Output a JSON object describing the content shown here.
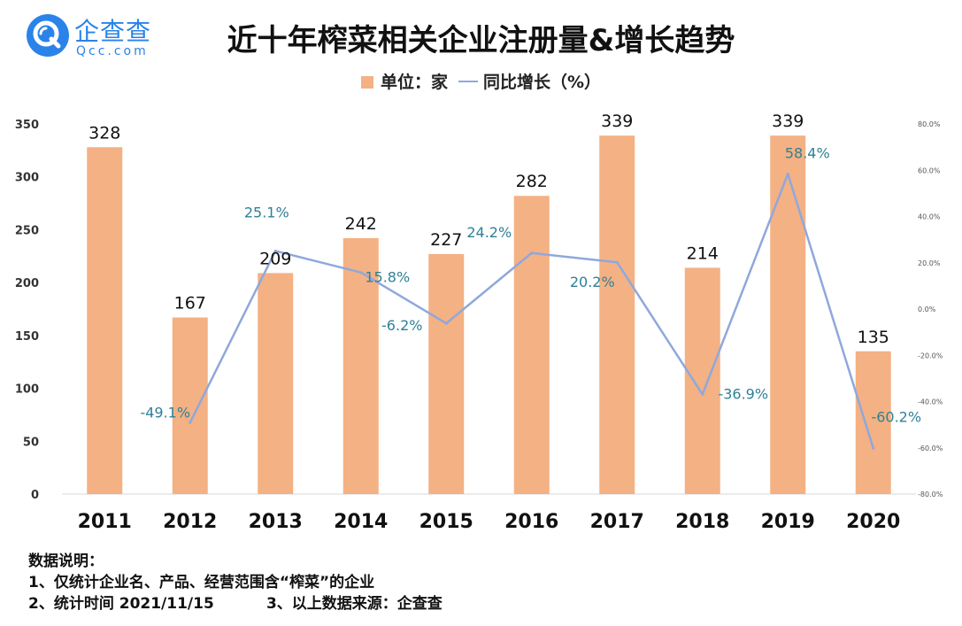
{
  "brand": {
    "name": "企查查",
    "domain": "Qcc.com",
    "color": "#2a83e8",
    "icon": "qcc-logo-icon"
  },
  "chart_data": {
    "type": "bar",
    "title": "近十年榨菜相关企业注册量&增长趋势",
    "categories": [
      "2011",
      "2012",
      "2013",
      "2014",
      "2015",
      "2016",
      "2017",
      "2018",
      "2019",
      "2020"
    ],
    "series": [
      {
        "name": "单位：家",
        "kind": "bar",
        "color": "#f4b184",
        "values": [
          328,
          167,
          209,
          242,
          227,
          282,
          339,
          214,
          339,
          135
        ],
        "labels": [
          "328",
          "167",
          "209",
          "242",
          "227",
          "282",
          "339",
          "214",
          "339",
          "135"
        ]
      },
      {
        "name": "同比增长（%）",
        "kind": "line",
        "color": "#8fa8dc",
        "label_color": "#2e8196",
        "values": [
          null,
          -49.1,
          25.1,
          15.8,
          -6.2,
          24.2,
          20.2,
          -36.9,
          58.4,
          -60.2
        ],
        "labels": [
          "",
          "-49.1%",
          "25.1%",
          "15.8%",
          "-6.2%",
          "24.2%",
          "20.2%",
          "-36.9%",
          "58.4%",
          "-60.2%"
        ]
      }
    ],
    "y_left": {
      "min": 0,
      "max": 350,
      "ticks": [
        "0",
        "50",
        "100",
        "150",
        "200",
        "250",
        "300",
        "350"
      ]
    },
    "y_right": {
      "min": -80,
      "max": 80,
      "ticks": [
        "-80.0%",
        "-60.0%",
        "-40.0%",
        "-20.0%",
        "0.0%",
        "20.0%",
        "40.0%",
        "60.0%",
        "80.0%"
      ]
    },
    "legend_position": "top-center",
    "grid": false
  },
  "notes": {
    "heading": "数据说明：",
    "line1": "1、仅统计企业名、产品、经营范围含“榨菜”的企业",
    "line2": "2、统计时间 2021/11/15          3、以上数据来源：企查查"
  }
}
